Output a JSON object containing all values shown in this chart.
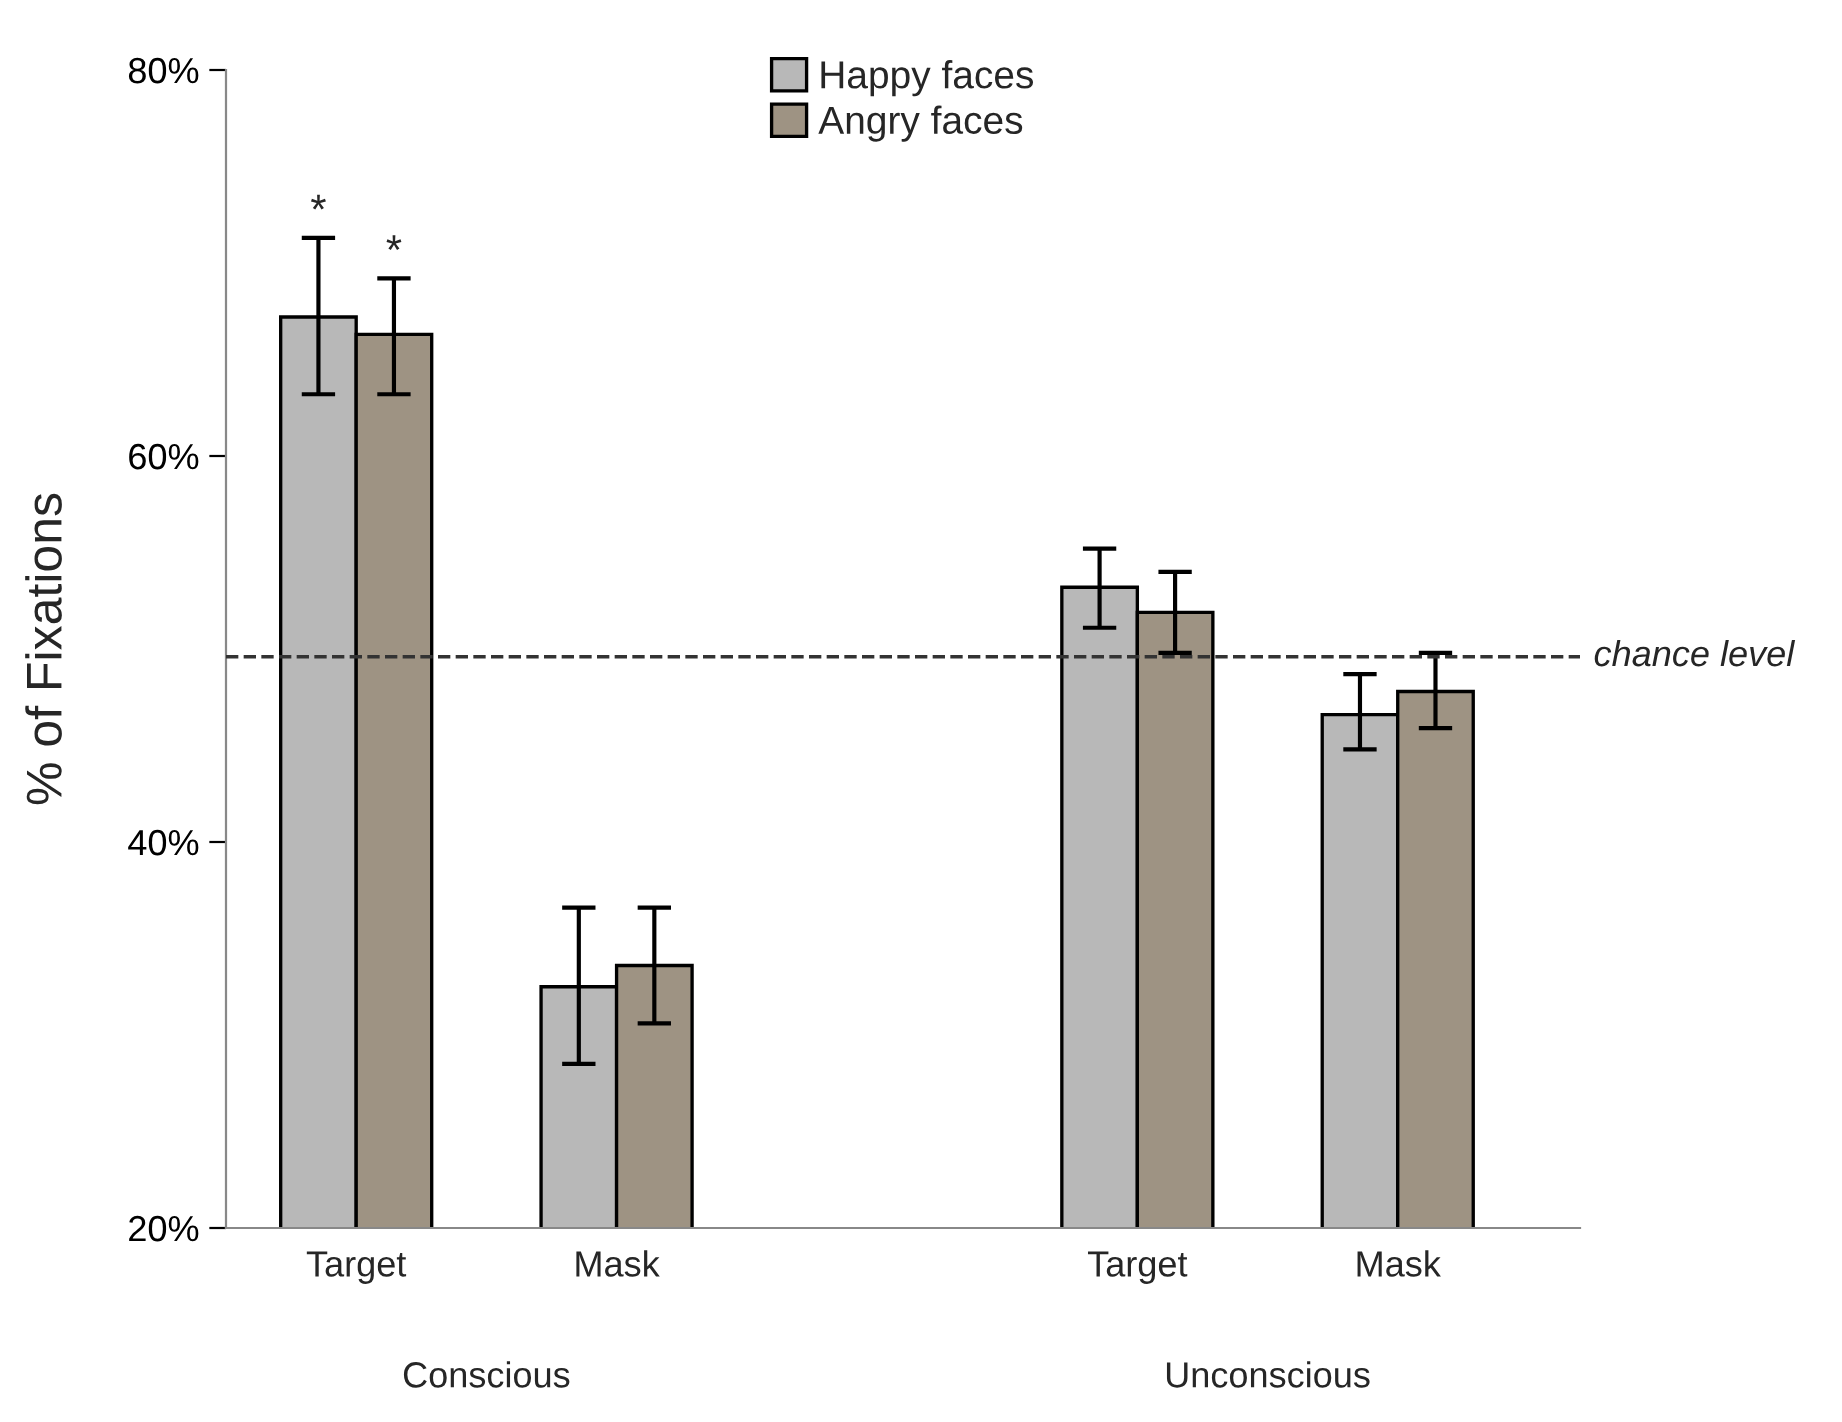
{
  "chart_data": {
    "type": "bar",
    "ylabel": "% of Fixations",
    "categories": [
      "Target",
      "Mask",
      null,
      "Target",
      "Mask"
    ],
    "series": [
      {
        "name": "Happy faces",
        "color": "#b8b8b8",
        "values": [
          67.2,
          32.5,
          null,
          53.2,
          46.6
        ],
        "errors": [
          [
            63.2,
            71.3
          ],
          [
            28.5,
            36.6
          ],
          null,
          [
            51.1,
            55.2
          ],
          [
            44.8,
            48.7
          ]
        ],
        "value_labels": [
          "*",
          null,
          null,
          null,
          null
        ]
      },
      {
        "name": "Angry faces",
        "color": "#9e9383",
        "values": [
          66.3,
          33.6,
          null,
          51.9,
          47.8
        ],
        "errors": [
          [
            63.2,
            69.2
          ],
          [
            30.6,
            36.6
          ],
          null,
          [
            49.8,
            54.0
          ],
          [
            45.9,
            49.8
          ]
        ],
        "value_labels": [
          "*",
          null,
          null,
          null,
          null
        ]
      }
    ],
    "ylim": [
      20,
      80
    ],
    "yticks": [
      {
        "value": 20,
        "label": "20%"
      },
      {
        "value": 40,
        "label": "40%"
      },
      {
        "value": 60,
        "label": "60%"
      },
      {
        "value": 80,
        "label": "80%"
      }
    ],
    "ref_lines": [
      {
        "axis": "y",
        "value": 49.6,
        "label": "chance level",
        "line_style": "dashed",
        "color": "#333333"
      }
    ],
    "annotations": [
      "Conscious",
      "Unconscious"
    ],
    "legend": "top",
    "grid": false
  }
}
